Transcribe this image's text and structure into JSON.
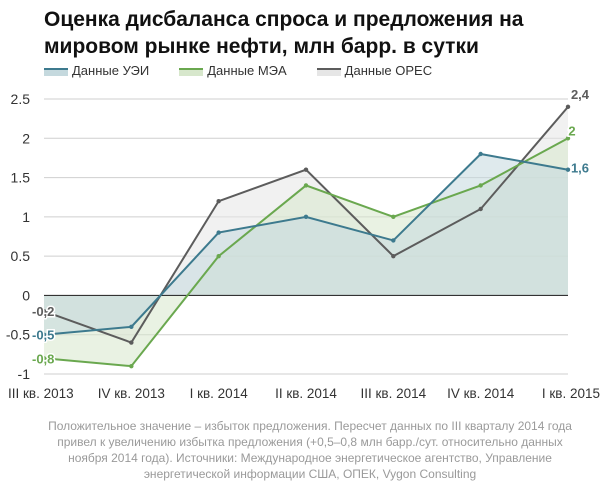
{
  "chart_data": {
    "type": "area",
    "title": "Оценка дисбаланса спроса и предложения на мировом рынке нефти, млн барр. в сутки",
    "xlabel": "",
    "ylabel": "",
    "categories": [
      "III кв. 2013",
      "IV кв. 2013",
      "I кв. 2014",
      "II кв. 2014",
      "III кв. 2014",
      "IV кв. 2014",
      "I кв. 2015"
    ],
    "ylim": [
      -1,
      2.5
    ],
    "yticks": [
      -1,
      -0.5,
      0,
      0.5,
      1,
      1.5,
      2,
      2.5
    ],
    "ytick_labels": [
      "-1",
      "-0.5",
      "0",
      "0.5",
      "1",
      "1.5",
      "2",
      "2.5"
    ],
    "grid": true,
    "legend_position": "top-left",
    "series": [
      {
        "name": "Данные УЭИ",
        "values": [
          -0.5,
          -0.4,
          0.8,
          1.0,
          0.7,
          1.8,
          1.6
        ],
        "color": "#3d7a8e",
        "fill": "#c5d9de",
        "labels": {
          "first": "-0,5",
          "last": "1,6"
        }
      },
      {
        "name": "Данные МЭА",
        "values": [
          -0.8,
          -0.9,
          0.5,
          1.4,
          1.0,
          1.4,
          2.0
        ],
        "color": "#6aa84f",
        "fill": "#d7e7cc",
        "labels": {
          "first": "-0,8",
          "last": "2"
        }
      },
      {
        "name": "Данные OPEC",
        "values": [
          -0.2,
          -0.6,
          1.2,
          1.6,
          0.5,
          1.1,
          2.4
        ],
        "color": "#5c5c5c",
        "fill": "#e6e6e6",
        "labels": {
          "first": "-0,2",
          "last": "2,4"
        }
      }
    ]
  },
  "footnote": "Положительное значение – избыток предложения. Пересчет данных по III кварталу 2014 года привел к увеличению избытка предложения (+0,5–0,8 млн барр./сут. относительно данных ноября 2014 года). Источники: Международное энергетическое агентство, Управление энергетической информации США, ОПЕК, Vygon Consulting"
}
